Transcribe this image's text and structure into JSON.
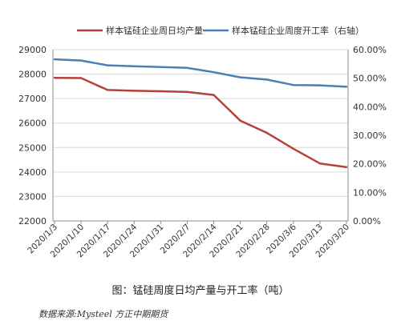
{
  "chart_data": {
    "type": "line",
    "categories": [
      "2020/1/3",
      "2020/1/10",
      "2020/1/17",
      "2020/1/24",
      "2020/1/31",
      "2020/2/7",
      "2020/2/14",
      "2020/2/21",
      "2020/2/28",
      "2020/3/6",
      "2020/3/13",
      "2020/3/20"
    ],
    "series": [
      {
        "name": "样本锰硅企业周日均产量",
        "axis": "left",
        "color": "#b5413b",
        "values": [
          27850,
          27840,
          27350,
          27320,
          27300,
          27270,
          27150,
          26100,
          25600,
          24950,
          24350,
          24200
        ]
      },
      {
        "name": "样本锰硅企业周度开工率（右轴）",
        "axis": "right",
        "color": "#4a7eb5",
        "values": [
          0.566,
          0.562,
          0.545,
          0.542,
          0.539,
          0.536,
          0.521,
          0.503,
          0.495,
          0.476,
          0.475,
          0.47
        ]
      }
    ],
    "y_left": {
      "min": 22000,
      "max": 29000,
      "step": 1000,
      "ticks": [
        "22000",
        "23000",
        "24000",
        "25000",
        "26000",
        "27000",
        "28000",
        "29000"
      ]
    },
    "y_right": {
      "min": 0,
      "max": 0.6,
      "step": 0.1,
      "ticks": [
        "0.00%",
        "10.00%",
        "20.00%",
        "30.00%",
        "40.00%",
        "50.00%",
        "60.00%"
      ]
    },
    "grid": true,
    "legend_position": "top"
  },
  "caption": "图：锰硅周度日均产量与开工率（吨）",
  "source": "数据来源:Mysteel  方正中期期货"
}
